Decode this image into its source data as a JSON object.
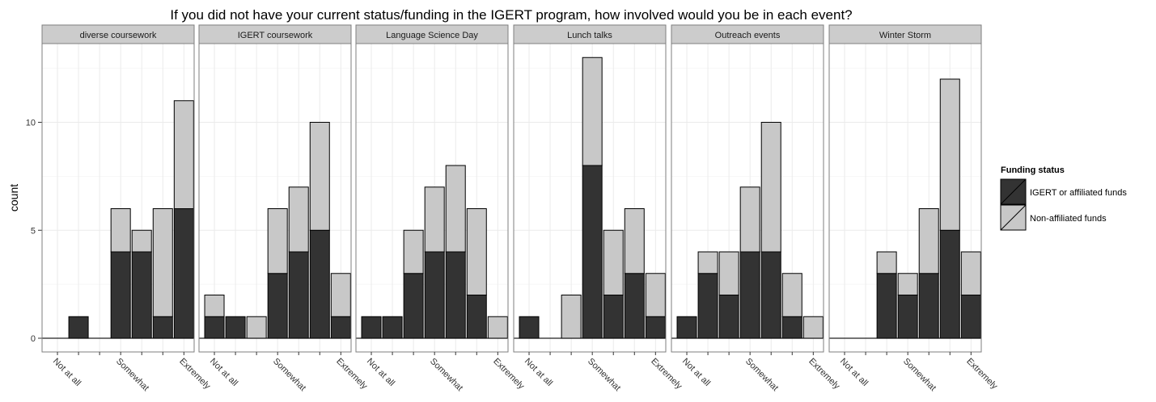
{
  "chart_data": {
    "type": "bar",
    "title": "If you did not have your current status/funding in the IGERT program, how involved would you be in each event?",
    "ylabel": "count",
    "xlabel": "",
    "ylim": [
      0,
      13.5
    ],
    "yticks": [
      0,
      5,
      10
    ],
    "x_levels": 7,
    "x_tick_labels": [
      {
        "level": 1,
        "label": "Not at all"
      },
      {
        "level": 4,
        "label": "Somewhat"
      },
      {
        "level": 7,
        "label": "Extremely"
      }
    ],
    "legend": {
      "title": "Funding status",
      "position": "right",
      "entries": [
        {
          "label": "IGERT or affiliated funds",
          "color": "#333333"
        },
        {
          "label": "Non-affiliated funds",
          "color": "#c8c8c8"
        }
      ]
    },
    "series_names": [
      "IGERT or affiliated funds",
      "Non-affiliated funds"
    ],
    "panels": [
      {
        "name": "diverse coursework",
        "igert": [
          0,
          1,
          0,
          4,
          4,
          1,
          6
        ],
        "non": [
          0,
          0,
          0,
          2,
          1,
          5,
          5
        ]
      },
      {
        "name": "IGERT coursework",
        "igert": [
          1,
          1,
          0,
          3,
          4,
          5,
          1
        ],
        "non": [
          1,
          0,
          1,
          3,
          3,
          5,
          2
        ]
      },
      {
        "name": "Language Science Day",
        "igert": [
          1,
          1,
          3,
          4,
          4,
          2,
          0
        ],
        "non": [
          0,
          0,
          2,
          3,
          4,
          4,
          1
        ]
      },
      {
        "name": "Lunch talks",
        "igert": [
          1,
          0,
          0,
          8,
          2,
          3,
          1
        ],
        "non": [
          0,
          0,
          2,
          5,
          3,
          3,
          2
        ]
      },
      {
        "name": "Outreach events",
        "igert": [
          1,
          3,
          2,
          4,
          4,
          1,
          0
        ],
        "non": [
          0,
          1,
          2,
          3,
          6,
          2,
          1
        ]
      },
      {
        "name": "Winter Storm",
        "igert": [
          0,
          0,
          3,
          2,
          3,
          5,
          2
        ],
        "non": [
          0,
          0,
          1,
          1,
          3,
          7,
          2
        ]
      }
    ],
    "grid": true,
    "colors": {
      "igert": "#333333",
      "non": "#c8c8c8",
      "strip_bg": "#cccccc",
      "grid_major": "#ebebeb",
      "grid_minor": "#f5f5f5",
      "panel_border": "#7f7f7f"
    }
  }
}
